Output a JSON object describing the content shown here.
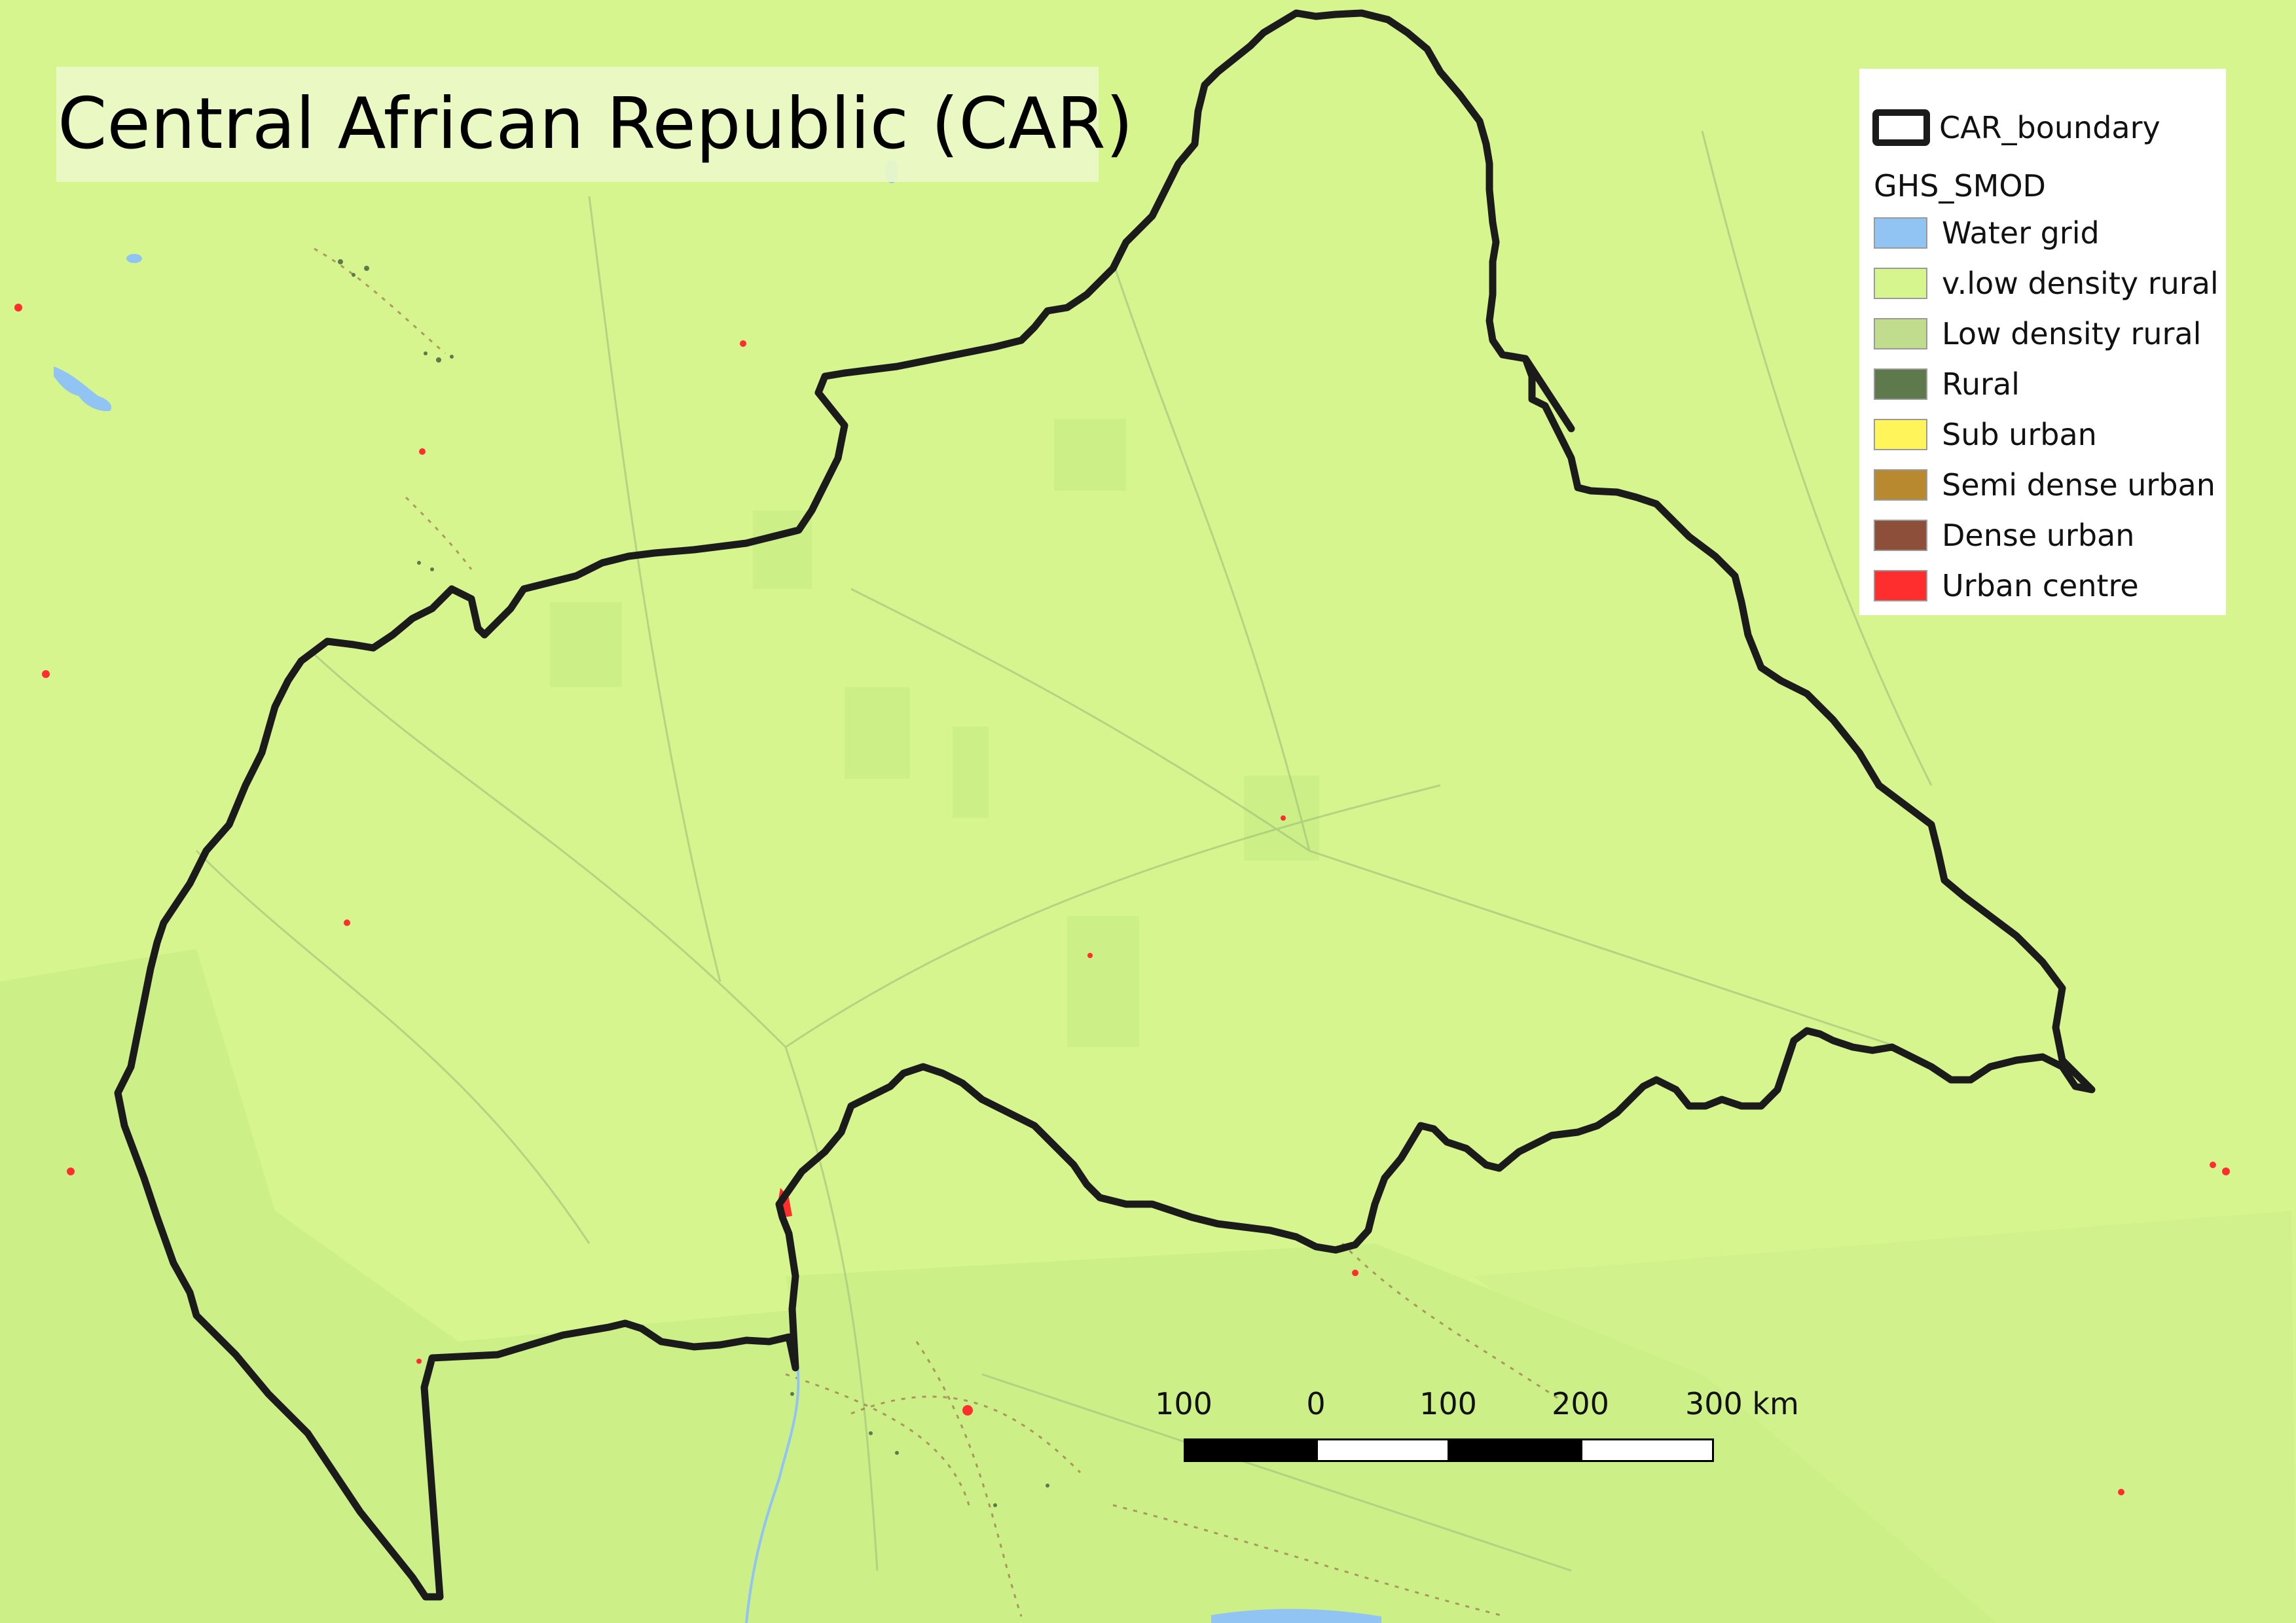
{
  "title": "Central African Republic (CAR)",
  "legend": {
    "boundary_label": "CAR_boundary",
    "group_label": "GHS_SMOD",
    "items": [
      {
        "label": "Water grid",
        "color": "#91c4f2"
      },
      {
        "label": "v.low density rural",
        "color": "#d6f58f"
      },
      {
        "label": "Low density rural",
        "color": "#bfdd8c"
      },
      {
        "label": "Rural",
        "color": "#5e7a4c"
      },
      {
        "label": "Sub urban",
        "color": "#fff45a"
      },
      {
        "label": "Semi dense urban",
        "color": "#b8892f"
      },
      {
        "label": "Dense urban",
        "color": "#8d4e3a"
      },
      {
        "label": "Urban centre",
        "color": "#ff2e2e"
      }
    ]
  },
  "scale_bar": {
    "labels": [
      "100",
      "0",
      "100",
      "200"
    ],
    "last_label": "300 km"
  },
  "colors": {
    "background": "#d6f58f",
    "low_density": "#c9ec86",
    "boundary": "#1b1b1b",
    "water": "#91c4f2",
    "urban_centre": "#ff2e2e",
    "roads": "#8d4e3a"
  }
}
